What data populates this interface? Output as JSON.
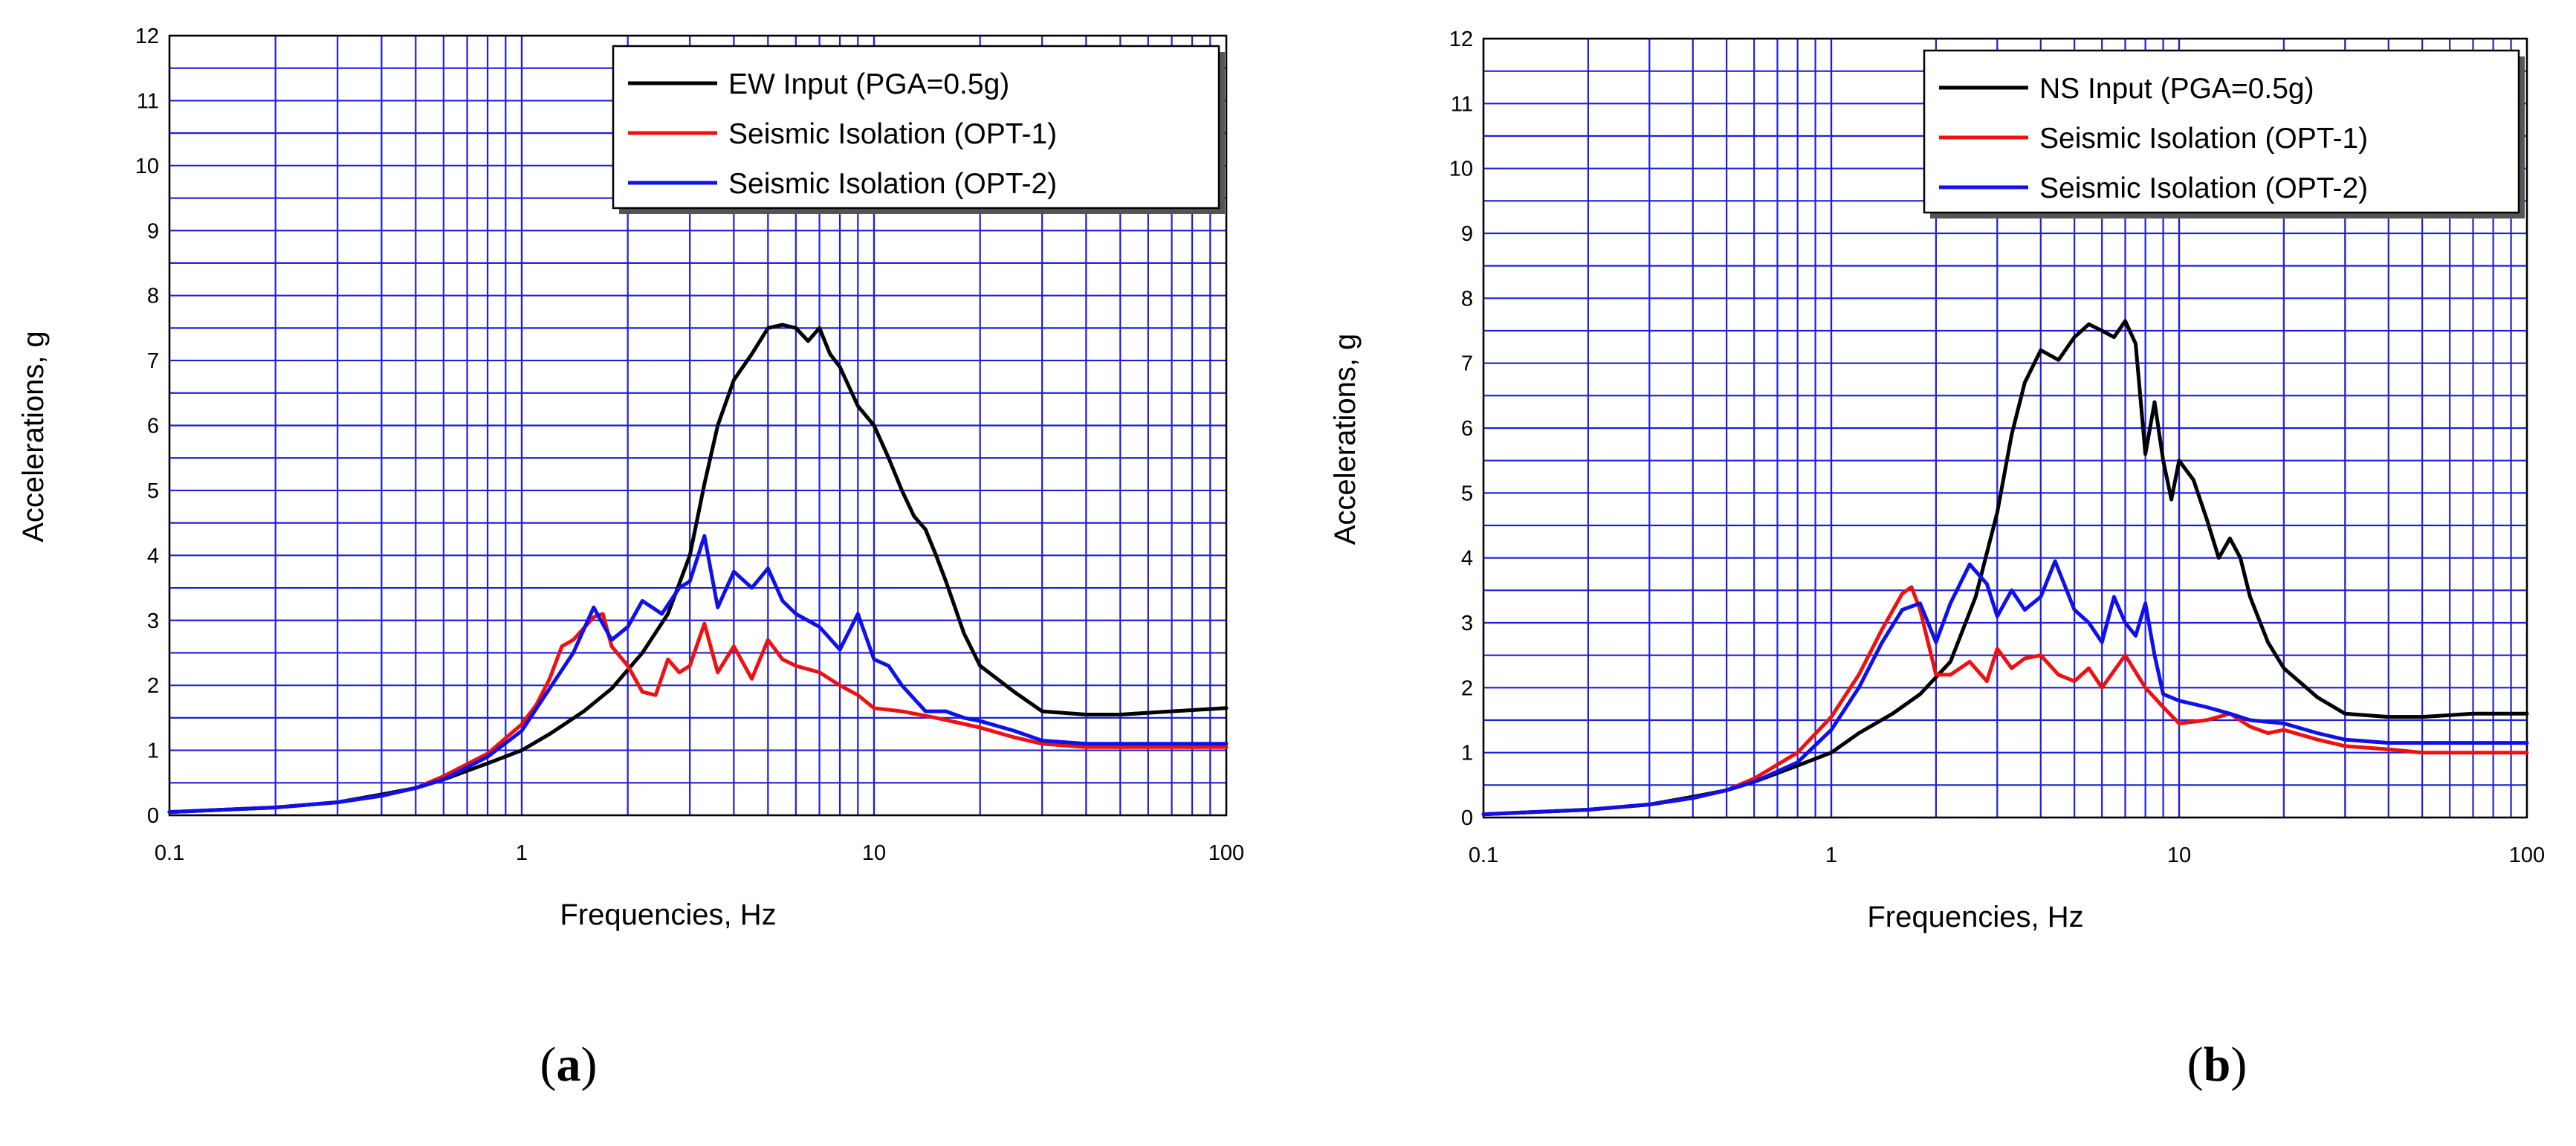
{
  "figure": {
    "colors": {
      "grid": "#1f1fd6",
      "input": "#000000",
      "opt1": "#ee1111",
      "opt2": "#1010e8"
    }
  },
  "chart_data": [
    {
      "type": "line",
      "panel_label": "a",
      "xscale": "log",
      "xlim": [
        0.1,
        100
      ],
      "ylim": [
        0,
        12
      ],
      "xticks": [
        "0.1",
        "1",
        "10",
        "100"
      ],
      "yticks": [
        "0",
        "1",
        "2",
        "3",
        "4",
        "5",
        "6",
        "7",
        "8",
        "9",
        "10",
        "11",
        "12"
      ],
      "xlabel": "Frequencies, Hz",
      "ylabel": "Accelerations, g",
      "grid": true,
      "legend_position": "top-right",
      "series": [
        {
          "name": "EW Input (PGA=0.5g)",
          "color": "#000000",
          "x": [
            0.1,
            0.2,
            0.3,
            0.4,
            0.5,
            0.6,
            0.8,
            1.0,
            1.2,
            1.5,
            1.8,
            2.2,
            2.6,
            3.0,
            3.3,
            3.6,
            4.0,
            4.5,
            5.0,
            5.5,
            6.0,
            6.5,
            7.0,
            7.5,
            8.0,
            9.0,
            10,
            11,
            12,
            13,
            14,
            15,
            16,
            18,
            20,
            25,
            30,
            40,
            50,
            70,
            100
          ],
          "y": [
            0.05,
            0.12,
            0.2,
            0.32,
            0.42,
            0.55,
            0.8,
            1.0,
            1.25,
            1.6,
            1.95,
            2.5,
            3.1,
            4.0,
            5.1,
            6.0,
            6.7,
            7.1,
            7.5,
            7.55,
            7.5,
            7.3,
            7.5,
            7.1,
            6.9,
            6.3,
            6.0,
            5.5,
            5.0,
            4.6,
            4.4,
            4.0,
            3.6,
            2.8,
            2.3,
            1.9,
            1.6,
            1.55,
            1.55,
            1.6,
            1.65
          ]
        },
        {
          "name": "Seismic Isolation (OPT-1)",
          "color": "#ee1111",
          "x": [
            0.1,
            0.2,
            0.3,
            0.4,
            0.5,
            0.6,
            0.8,
            1.0,
            1.1,
            1.2,
            1.3,
            1.4,
            1.6,
            1.7,
            1.8,
            2.0,
            2.2,
            2.4,
            2.6,
            2.8,
            3.0,
            3.3,
            3.6,
            4.0,
            4.5,
            5.0,
            5.5,
            6.0,
            7.0,
            8.0,
            9.0,
            10,
            12,
            15,
            20,
            25,
            30,
            40,
            50,
            70,
            100
          ],
          "y": [
            0.05,
            0.12,
            0.2,
            0.3,
            0.42,
            0.6,
            0.95,
            1.4,
            1.7,
            2.1,
            2.6,
            2.7,
            3.05,
            3.1,
            2.6,
            2.3,
            1.9,
            1.85,
            2.4,
            2.2,
            2.3,
            2.95,
            2.2,
            2.6,
            2.1,
            2.7,
            2.4,
            2.3,
            2.2,
            2.0,
            1.85,
            1.65,
            1.6,
            1.5,
            1.35,
            1.2,
            1.1,
            1.05,
            1.05,
            1.05,
            1.05
          ]
        },
        {
          "name": "Seismic Isolation (OPT-2)",
          "color": "#1010e8",
          "x": [
            0.1,
            0.2,
            0.3,
            0.4,
            0.5,
            0.6,
            0.8,
            1.0,
            1.2,
            1.4,
            1.6,
            1.8,
            2.0,
            2.2,
            2.5,
            2.8,
            3.0,
            3.3,
            3.6,
            4.0,
            4.5,
            5.0,
            5.5,
            6.0,
            7.0,
            8.0,
            9.0,
            10,
            11,
            12,
            14,
            16,
            18,
            20,
            25,
            30,
            40,
            50,
            70,
            100
          ],
          "y": [
            0.05,
            0.12,
            0.2,
            0.3,
            0.42,
            0.55,
            0.9,
            1.3,
            1.95,
            2.5,
            3.2,
            2.7,
            2.9,
            3.3,
            3.1,
            3.5,
            3.6,
            4.3,
            3.2,
            3.75,
            3.5,
            3.8,
            3.3,
            3.1,
            2.9,
            2.55,
            3.1,
            2.4,
            2.3,
            2.0,
            1.6,
            1.6,
            1.5,
            1.45,
            1.3,
            1.15,
            1.1,
            1.1,
            1.1,
            1.1
          ]
        }
      ]
    },
    {
      "type": "line",
      "panel_label": "b",
      "xscale": "log",
      "xlim": [
        0.1,
        100
      ],
      "ylim": [
        0,
        12
      ],
      "xticks": [
        "0.1",
        "1",
        "10",
        "100"
      ],
      "yticks": [
        "0",
        "1",
        "2",
        "3",
        "4",
        "5",
        "6",
        "7",
        "8",
        "9",
        "10",
        "11",
        "12"
      ],
      "xlabel": "Frequencies, Hz",
      "ylabel": "Accelerations, g",
      "grid": true,
      "legend_position": "top-right",
      "series": [
        {
          "name": "NS Input (PGA=0.5g)",
          "color": "#000000",
          "x": [
            0.1,
            0.2,
            0.3,
            0.4,
            0.5,
            0.6,
            0.8,
            1.0,
            1.2,
            1.5,
            1.8,
            2.2,
            2.6,
            3.0,
            3.3,
            3.6,
            4.0,
            4.5,
            5.0,
            5.5,
            6.0,
            6.5,
            7.0,
            7.5,
            8.0,
            8.5,
            9.0,
            9.5,
            10,
            11,
            12,
            13,
            14,
            15,
            16,
            18,
            20,
            25,
            30,
            40,
            50,
            70,
            100
          ],
          "y": [
            0.05,
            0.12,
            0.2,
            0.32,
            0.42,
            0.55,
            0.8,
            1.0,
            1.3,
            1.6,
            1.9,
            2.4,
            3.4,
            4.7,
            5.9,
            6.7,
            7.2,
            7.05,
            7.4,
            7.6,
            7.5,
            7.4,
            7.65,
            7.3,
            5.6,
            6.4,
            5.5,
            4.9,
            5.5,
            5.2,
            4.6,
            4.0,
            4.3,
            4.0,
            3.4,
            2.7,
            2.3,
            1.85,
            1.6,
            1.55,
            1.55,
            1.6,
            1.6
          ]
        },
        {
          "name": "Seismic Isolation (OPT-1)",
          "color": "#ee1111",
          "x": [
            0.1,
            0.2,
            0.3,
            0.4,
            0.5,
            0.6,
            0.8,
            1.0,
            1.2,
            1.4,
            1.6,
            1.7,
            1.8,
            2.0,
            2.2,
            2.5,
            2.8,
            3.0,
            3.3,
            3.6,
            4.0,
            4.5,
            5.0,
            5.5,
            6.0,
            7.0,
            8.0,
            9.0,
            10,
            12,
            14,
            16,
            18,
            20,
            25,
            30,
            40,
            50,
            70,
            100
          ],
          "y": [
            0.05,
            0.12,
            0.2,
            0.3,
            0.42,
            0.6,
            1.0,
            1.55,
            2.2,
            2.9,
            3.45,
            3.55,
            3.2,
            2.2,
            2.2,
            2.4,
            2.1,
            2.6,
            2.3,
            2.45,
            2.5,
            2.2,
            2.1,
            2.3,
            2.0,
            2.5,
            2.0,
            1.7,
            1.45,
            1.5,
            1.6,
            1.4,
            1.3,
            1.35,
            1.2,
            1.1,
            1.05,
            1.0,
            1.0,
            1.0
          ]
        },
        {
          "name": "Seismic Isolation (OPT-2)",
          "color": "#1010e8",
          "x": [
            0.1,
            0.2,
            0.3,
            0.4,
            0.5,
            0.6,
            0.8,
            1.0,
            1.2,
            1.4,
            1.6,
            1.8,
            2.0,
            2.2,
            2.5,
            2.8,
            3.0,
            3.3,
            3.6,
            4.0,
            4.4,
            5.0,
            5.5,
            6.0,
            6.5,
            7.0,
            7.5,
            8.0,
            8.5,
            9.0,
            10,
            12,
            14,
            16,
            20,
            25,
            30,
            40,
            50,
            70,
            100
          ],
          "y": [
            0.05,
            0.12,
            0.2,
            0.3,
            0.42,
            0.55,
            0.85,
            1.35,
            2.0,
            2.7,
            3.2,
            3.3,
            2.7,
            3.3,
            3.9,
            3.6,
            3.1,
            3.5,
            3.2,
            3.4,
            3.95,
            3.2,
            3.0,
            2.7,
            3.4,
            3.0,
            2.8,
            3.3,
            2.5,
            1.9,
            1.8,
            1.7,
            1.6,
            1.5,
            1.45,
            1.3,
            1.2,
            1.15,
            1.15,
            1.15,
            1.15
          ]
        }
      ]
    }
  ]
}
